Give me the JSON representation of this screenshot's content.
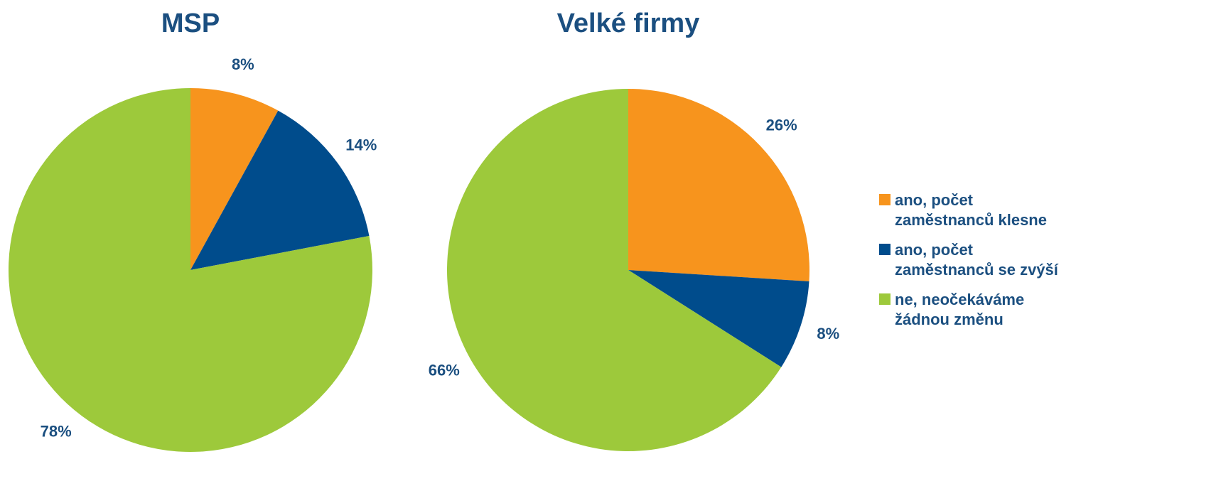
{
  "chart_data": [
    {
      "type": "pie",
      "title": "MSP",
      "values": [
        8,
        14,
        78
      ],
      "value_labels": [
        "8%",
        "14%",
        "78%"
      ]
    },
    {
      "type": "pie",
      "title": "Velké firmy",
      "values": [
        26,
        8,
        66
      ],
      "value_labels": [
        "26%",
        "8%",
        "66%"
      ]
    }
  ],
  "legend": {
    "labels": [
      "ano, počet zaměstnanců klesne",
      "ano, počet zaměstnanců se zvýší",
      "ne, neočekáváme žádnou změnu"
    ],
    "colors": [
      "#f7941d",
      "#004c8c",
      "#9dc93b"
    ]
  }
}
